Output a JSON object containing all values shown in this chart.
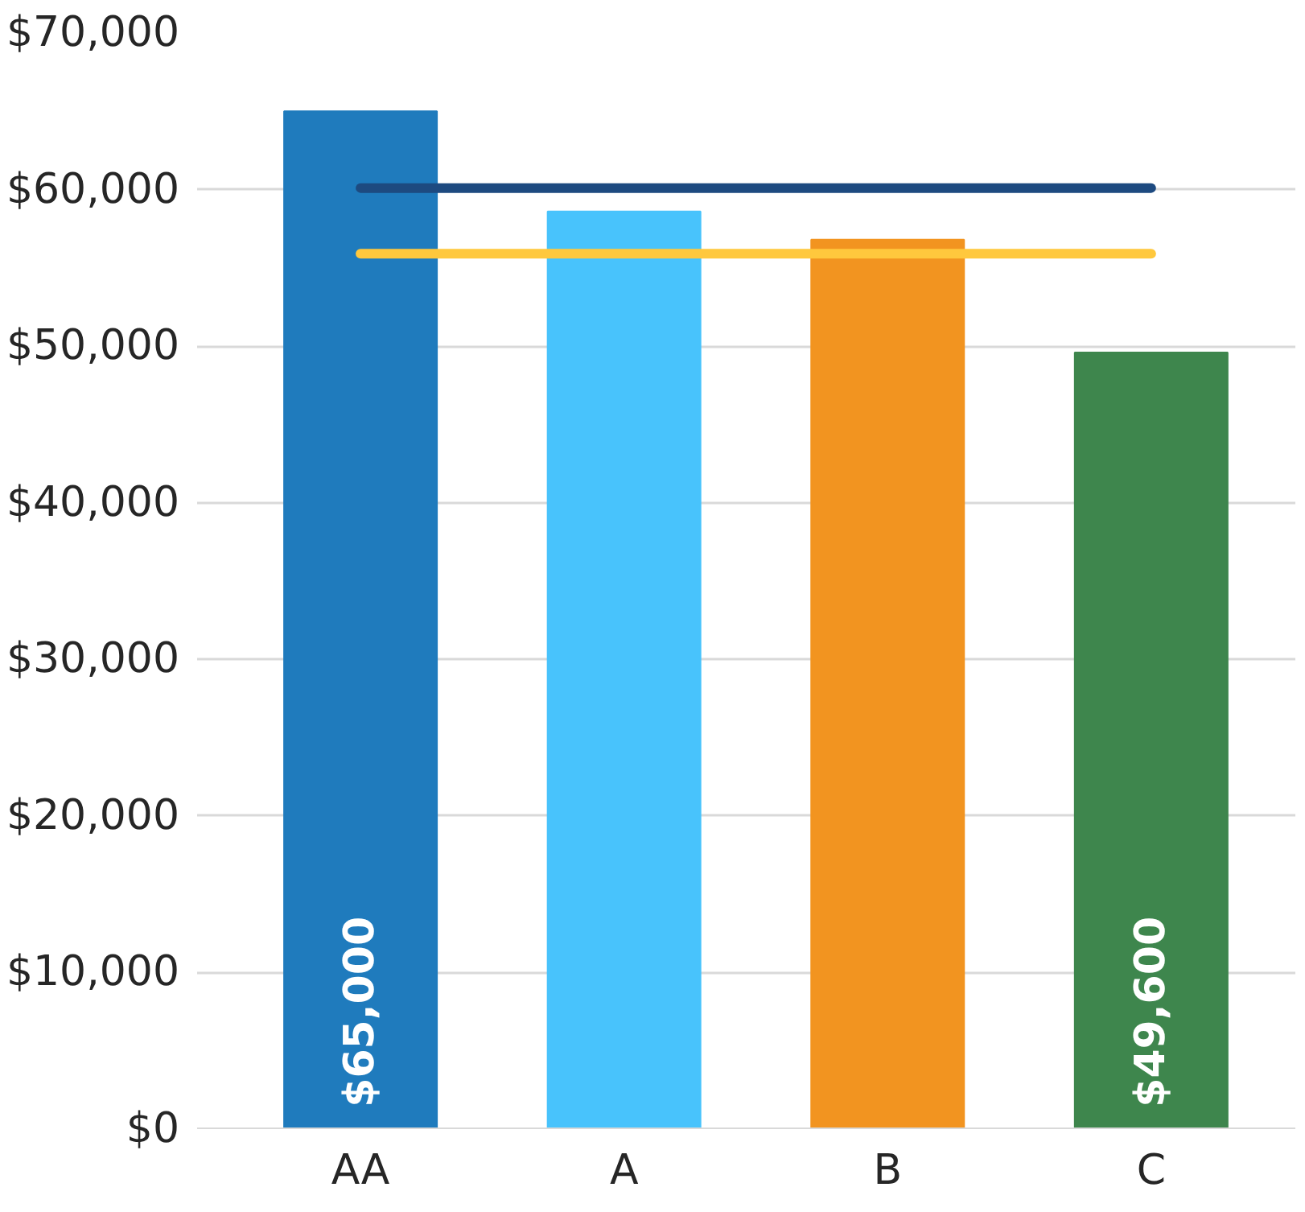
{
  "chart_data": {
    "type": "bar",
    "categories": [
      "AA",
      "A",
      "B",
      "C"
    ],
    "series": [
      {
        "colors": [
          "#1f7bbd",
          "#48c3fc",
          "#f29420",
          "#3e864d"
        ],
        "values": [
          65000,
          58600,
          56800,
          49600
        ],
        "value_labels": [
          "$65,000",
          null,
          null,
          "$49,600"
        ]
      },
      {
        "type": "line",
        "color": "#1d4a80",
        "values": [
          60100,
          60100,
          60100,
          60100
        ]
      },
      {
        "type": "line",
        "color": "#ffc83d",
        "values": [
          55900,
          55900,
          55900,
          55900
        ]
      }
    ],
    "ylim": [
      0,
      70000
    ],
    "yticks": [
      {
        "value": 0,
        "label": "$0"
      },
      {
        "value": 10000,
        "label": "$10,000"
      },
      {
        "value": 20000,
        "label": "$20,000"
      },
      {
        "value": 30000,
        "label": "$30,000"
      },
      {
        "value": 40000,
        "label": "$40,000"
      },
      {
        "value": 50000,
        "label": "$50,000"
      },
      {
        "value": 60000,
        "label": "$60,000"
      },
      {
        "value": 70000,
        "label": "$70,000"
      }
    ],
    "grid": "y"
  }
}
